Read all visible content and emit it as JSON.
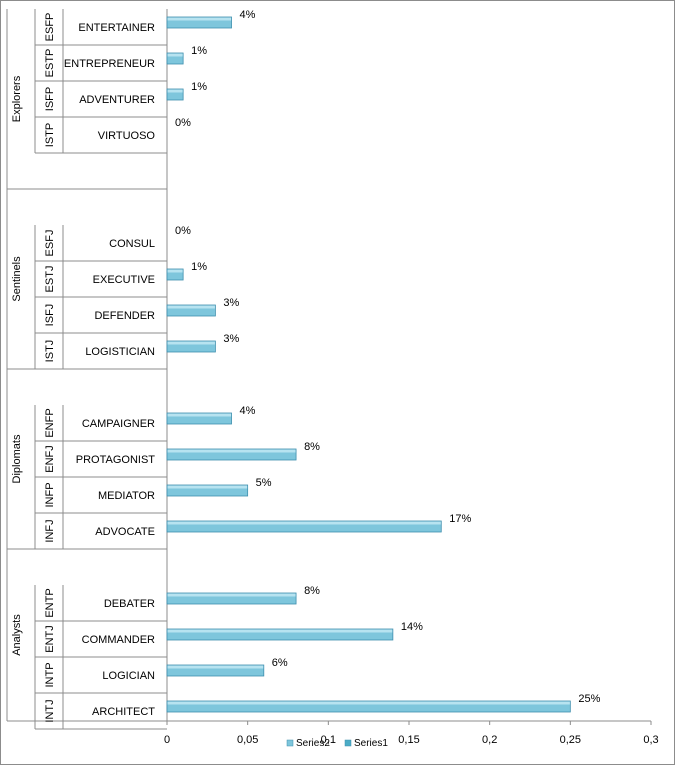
{
  "chart_data": {
    "type": "bar",
    "orientation": "horizontal",
    "groups": [
      {
        "name": "Explorers",
        "rows": [
          {
            "code": "ESFP",
            "name": "ENTERTAINER",
            "value": 0.04,
            "label": "4%"
          },
          {
            "code": "ESTP",
            "name": "ENTREPRENEUR",
            "value": 0.01,
            "label": "1%"
          },
          {
            "code": "ISFP",
            "name": "ADVENTURER",
            "value": 0.01,
            "label": "1%"
          },
          {
            "code": "ISTP",
            "name": "VIRTUOSO",
            "value": 0.0,
            "label": "0%"
          }
        ]
      },
      {
        "name": "Sentinels",
        "rows": [
          {
            "code": "ESFJ",
            "name": "CONSUL",
            "value": 0.0,
            "label": "0%"
          },
          {
            "code": "ESTJ",
            "name": "EXECUTIVE",
            "value": 0.01,
            "label": "1%"
          },
          {
            "code": "ISFJ",
            "name": "DEFENDER",
            "value": 0.03,
            "label": "3%"
          },
          {
            "code": "ISTJ",
            "name": "LOGISTICIAN",
            "value": 0.03,
            "label": "3%"
          }
        ]
      },
      {
        "name": "Diplomats",
        "rows": [
          {
            "code": "ENFP",
            "name": "CAMPAIGNER",
            "value": 0.04,
            "label": "4%"
          },
          {
            "code": "ENFJ",
            "name": "PROTAGONIST",
            "value": 0.08,
            "label": "8%"
          },
          {
            "code": "INFP",
            "name": "MEDIATOR",
            "value": 0.05,
            "label": "5%"
          },
          {
            "code": "INFJ",
            "name": "ADVOCATE",
            "value": 0.17,
            "label": "17%"
          }
        ]
      },
      {
        "name": "Analysts",
        "rows": [
          {
            "code": "ENTP",
            "name": "DEBATER",
            "value": 0.08,
            "label": "8%"
          },
          {
            "code": "ENTJ",
            "name": "COMMANDER",
            "value": 0.14,
            "label": "14%"
          },
          {
            "code": "INTP",
            "name": "LOGICIAN",
            "value": 0.06,
            "label": "6%"
          },
          {
            "code": "INTJ",
            "name": "ARCHITECT",
            "value": 0.25,
            "label": "25%"
          }
        ]
      }
    ],
    "x_ticks": [
      "0",
      "0,05",
      "0,1",
      "0,15",
      "0,2",
      "0,25",
      "0,3"
    ],
    "xlim": [
      0,
      0.3
    ],
    "legend": [
      "Series2",
      "Series1"
    ],
    "legend_position": "bottom",
    "grid": false,
    "colors": {
      "bar_top": "#b7e3f0",
      "bar_face": "#7ec6dc",
      "bar_edge": "#3f8fae",
      "series1": "#4bacc6"
    }
  }
}
